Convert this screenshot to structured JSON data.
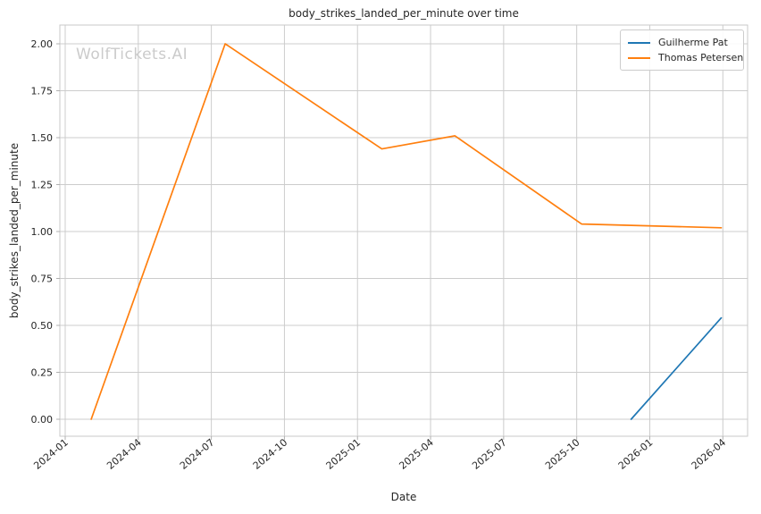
{
  "watermark": "WolfTickets.AI",
  "chart_data": {
    "type": "line",
    "title": "body_strikes_landed_per_minute over time",
    "xlabel": "Date",
    "ylabel": "body_strikes_landed_per_minute",
    "grid": true,
    "legend_position": "upper right",
    "x_tick_labels": [
      "2024-01",
      "2024-04",
      "2024-07",
      "2024-10",
      "2025-01",
      "2025-04",
      "2025-07",
      "2025-10",
      "2026-01",
      "2026-04"
    ],
    "y_tick_labels": [
      "0.00",
      "0.25",
      "0.50",
      "0.75",
      "1.00",
      "1.25",
      "1.50",
      "1.75",
      "2.00"
    ],
    "ylim": [
      -0.1,
      2.1
    ],
    "series": [
      {
        "name": "Guilherme Pat",
        "color": "#1f77b4",
        "points": [
          {
            "date": "2025-12-08",
            "value": 0.0
          },
          {
            "date": "2026-03-29",
            "value": 0.54
          }
        ]
      },
      {
        "name": "Thomas Petersen",
        "color": "#ff7f0e",
        "points": [
          {
            "date": "2024-02-03",
            "value": 0.0
          },
          {
            "date": "2024-07-18",
            "value": 2.0
          },
          {
            "date": "2025-02-01",
            "value": 1.44
          },
          {
            "date": "2025-05-01",
            "value": 1.51
          },
          {
            "date": "2025-10-07",
            "value": 1.04
          },
          {
            "date": "2026-03-29",
            "value": 1.02
          }
        ]
      }
    ],
    "colors": {
      "grid": "#cccccc",
      "spine": "#c9c9c9",
      "tick": "#b0b0b0",
      "text": "#262626",
      "watermark": "#cbcbcb"
    }
  }
}
